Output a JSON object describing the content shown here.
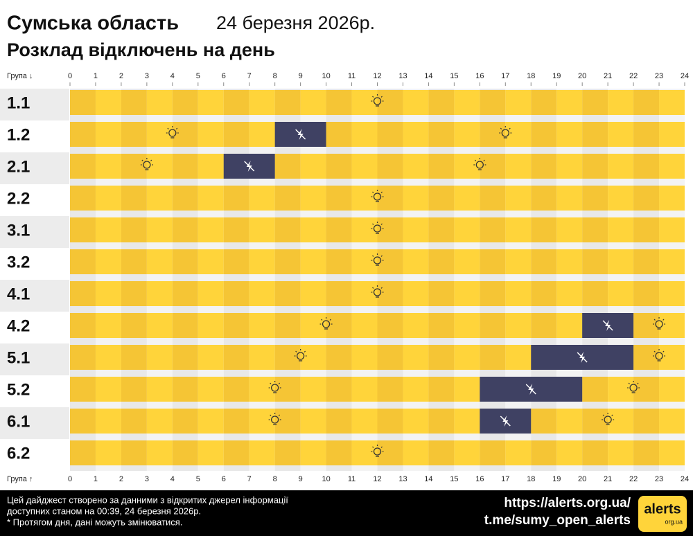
{
  "header": {
    "region": "Сумська область",
    "date": "24 березня 2026р.",
    "subtitle": "Розклад відключень на день"
  },
  "schedule": {
    "axis_label_top": "Група ↓",
    "axis_label_bottom": "Група ↑",
    "hours": [
      0,
      1,
      2,
      3,
      4,
      5,
      6,
      7,
      8,
      9,
      10,
      11,
      12,
      13,
      14,
      15,
      16,
      17,
      18,
      19,
      20,
      21,
      22,
      23,
      24
    ],
    "groups": [
      {
        "name": "1.1",
        "off": []
      },
      {
        "name": "1.2",
        "off": [
          [
            8,
            10
          ]
        ]
      },
      {
        "name": "2.1",
        "off": [
          [
            6,
            8
          ]
        ]
      },
      {
        "name": "2.2",
        "off": []
      },
      {
        "name": "3.1",
        "off": []
      },
      {
        "name": "3.2",
        "off": []
      },
      {
        "name": "4.1",
        "off": []
      },
      {
        "name": "4.2",
        "off": [
          [
            20,
            22
          ]
        ]
      },
      {
        "name": "5.1",
        "off": [
          [
            18,
            22
          ]
        ]
      },
      {
        "name": "5.2",
        "off": [
          [
            16,
            20
          ]
        ]
      },
      {
        "name": "6.1",
        "off": [
          [
            16,
            18
          ]
        ]
      },
      {
        "name": "6.2",
        "off": []
      }
    ]
  },
  "footer": {
    "note_1": "Цей дайджест створено за данними з відкритих джерел інформації",
    "note_2": "доступних станом на 00:39, 24 березня 2026р.",
    "note_3": "* Протягом дня, дані можуть змінюватися.",
    "link_site": "https://alerts.org.ua/",
    "link_telegram": "t.me/sumy_open_alerts",
    "logo": "alerts",
    "logo_sub": "org.ua"
  }
}
